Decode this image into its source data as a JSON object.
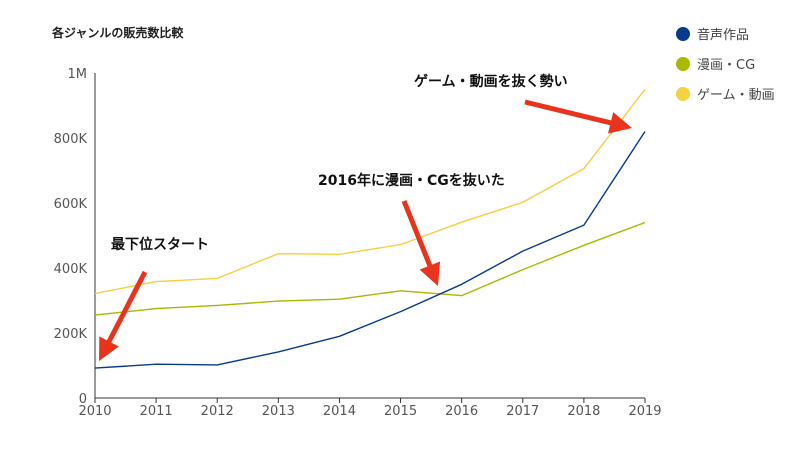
{
  "chart_data": {
    "type": "line",
    "title": "各ジャンルの販売数比較",
    "xlabel": "",
    "ylabel": "",
    "x": [
      "2010",
      "2011",
      "2012",
      "2013",
      "2014",
      "2015",
      "2016",
      "2017",
      "2018",
      "2019"
    ],
    "ylim": [
      0,
      1000000
    ],
    "y_ticks": [
      {
        "value": 0,
        "label": "0"
      },
      {
        "value": 200000,
        "label": "200K"
      },
      {
        "value": 400000,
        "label": "400K"
      },
      {
        "value": 600000,
        "label": "600K"
      },
      {
        "value": 800000,
        "label": "800K"
      },
      {
        "value": 1000000,
        "label": "1M"
      }
    ],
    "grid": false,
    "legend_position": "top-right",
    "series": [
      {
        "name": "音声作品",
        "color": "#0a3a8c",
        "values": [
          92000,
          104000,
          102000,
          142000,
          190000,
          266000,
          350000,
          452000,
          532000,
          820000
        ]
      },
      {
        "name": "漫画・CG",
        "color": "#aab800",
        "values": [
          255000,
          275000,
          285000,
          298000,
          304000,
          330000,
          315000,
          395000,
          470000,
          540000
        ]
      },
      {
        "name": "ゲーム・動画",
        "color": "#f5d040",
        "values": [
          322000,
          358000,
          368000,
          444000,
          442000,
          472000,
          541000,
          602000,
          706000,
          950000
        ]
      }
    ],
    "annotations": [
      {
        "text": "最下位スタート"
      },
      {
        "text": "2016年に漫画・CGを抜いた"
      },
      {
        "text": "ゲーム・動画を抜く勢い"
      }
    ],
    "arrow_color": "#e8341c"
  }
}
